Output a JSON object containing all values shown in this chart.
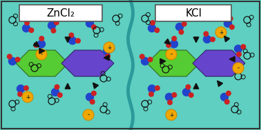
{
  "bg_color": "#5ecfc0",
  "divider_color": "#2a9a9a",
  "left_label": "ZnCl₂",
  "right_label": "KCl",
  "label_fontsize": 11,
  "fig_width": 3.78,
  "fig_height": 1.89,
  "hex_color_green": "#55cc33",
  "hex_color_purple": "#6644cc",
  "hex_color_green_dark": "#336622",
  "hex_color_purple_dark": "#332266",
  "ion_color": "#f0a800",
  "ion_edge_color": "#cc8800",
  "water_blue": "#2244cc",
  "water_red": "#cc2222",
  "arrow_color": "#111111",
  "label_bg": "#ffffff",
  "label_edge": "#555555",
  "border_color": "#333333"
}
